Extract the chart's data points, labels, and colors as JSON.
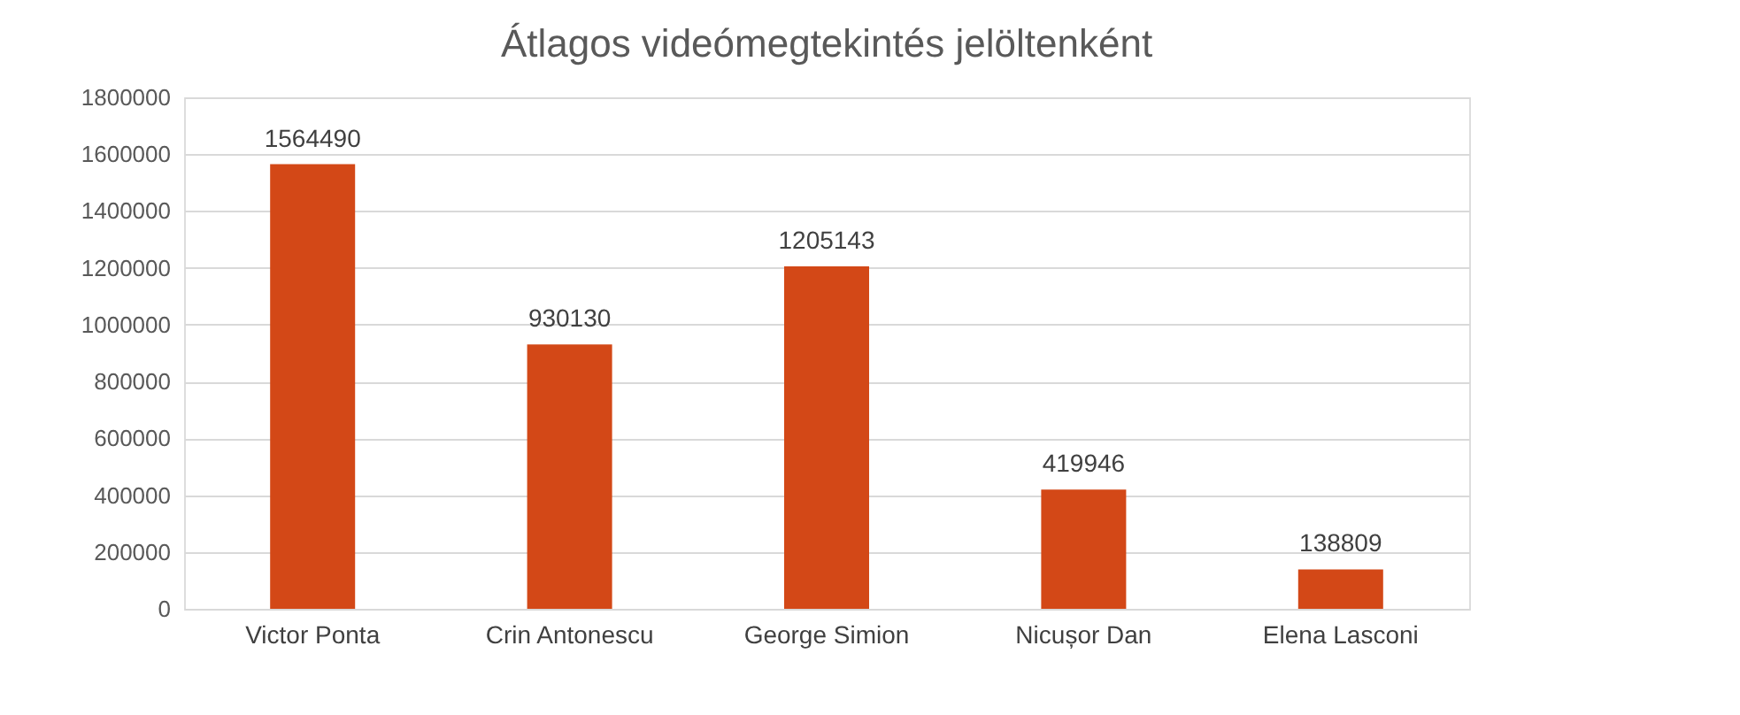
{
  "chart_data": {
    "type": "bar",
    "title": "Átlagos videómegtekintés jelöltenként",
    "categories": [
      "Victor Ponta",
      "Crin Antonescu",
      "George Simion",
      "Nicușor Dan",
      "Elena Lasconi"
    ],
    "values": [
      1564490,
      930130,
      1205143,
      419946,
      138809
    ],
    "color": "#d34817",
    "ylim": [
      0,
      1800000
    ],
    "yticks": [
      0,
      200000,
      400000,
      600000,
      800000,
      1000000,
      1200000,
      1400000,
      1600000,
      1800000
    ],
    "grid": "y",
    "data_labels": true
  }
}
